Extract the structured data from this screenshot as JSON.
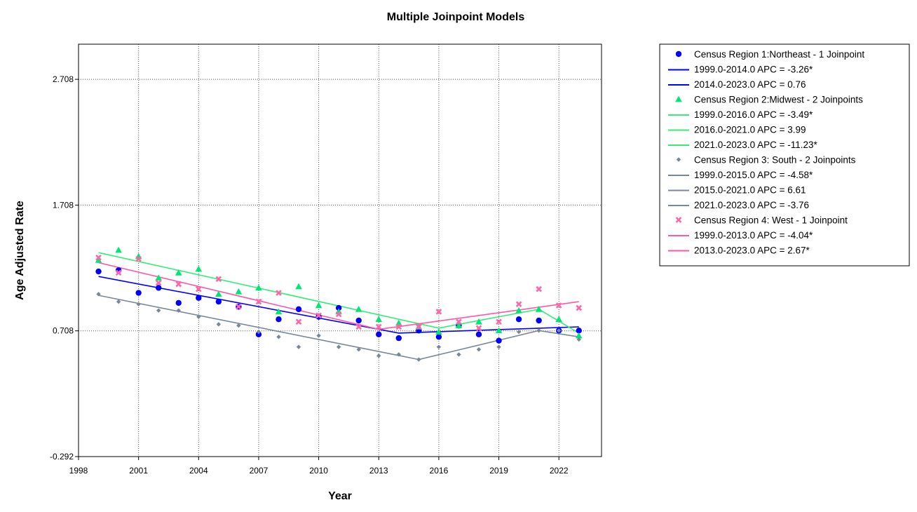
{
  "chart_data": {
    "type": "scatter",
    "title": "Multiple Joinpoint Models",
    "xlabel": "Year",
    "ylabel": "Age Adjusted Rate",
    "xlim": [
      1998,
      2024
    ],
    "ylim": [
      -0.292,
      2.708
    ],
    "x_ticks": [
      1998,
      2001,
      2004,
      2007,
      2010,
      2013,
      2016,
      2019,
      2022
    ],
    "y_ticks": [
      -0.292,
      0.708,
      1.708,
      2.708
    ],
    "y_tick_labels": [
      "-0.292",
      "0.708",
      "1.708",
      "2.708"
    ],
    "grid": "dotted",
    "legend_position": "right",
    "series": [
      {
        "name": "Census Region 1:Northeast - 1 Joinpoint",
        "marker": "circle",
        "color": "#0000ff",
        "x": [
          1999,
          2000,
          2001,
          2002,
          2003,
          2004,
          2005,
          2006,
          2007,
          2008,
          2009,
          2010,
          2011,
          2012,
          2013,
          2014,
          2015,
          2016,
          2017,
          2018,
          2019,
          2020,
          2021,
          2022,
          2023
        ],
        "y": [
          1.18,
          1.19,
          1.01,
          1.05,
          0.93,
          0.97,
          0.94,
          0.9,
          0.68,
          0.8,
          0.88,
          0.82,
          0.89,
          0.79,
          0.68,
          0.65,
          0.71,
          0.66,
          0.75,
          0.68,
          0.63,
          0.8,
          0.79,
          0.71,
          0.71
        ],
        "fit": {
          "x": [
            1999,
            2014,
            2023
          ],
          "y": [
            1.14,
            0.69,
            0.74
          ]
        },
        "segments": [
          {
            "label": "1999.0-2014.0 APC  =  -3.26*"
          },
          {
            "label": "2014.0-2023.0 APC  =  0.76"
          }
        ]
      },
      {
        "name": "Census Region 2:Midwest - 2 Joinpoints",
        "marker": "triangle",
        "color": "#00e673",
        "line_color": "#33ee77",
        "x": [
          1999,
          2000,
          2001,
          2002,
          2003,
          2004,
          2005,
          2006,
          2007,
          2008,
          2009,
          2010,
          2011,
          2012,
          2013,
          2014,
          2015,
          2016,
          2017,
          2018,
          2019,
          2020,
          2021,
          2022,
          2023
        ],
        "y": [
          1.27,
          1.35,
          1.3,
          1.13,
          1.17,
          1.2,
          1.0,
          1.02,
          1.05,
          0.86,
          1.06,
          0.91,
          0.86,
          0.88,
          0.8,
          0.77,
          0.74,
          0.7,
          0.75,
          0.78,
          0.71,
          0.87,
          0.88,
          0.8,
          0.67
        ],
        "fit": {
          "x": [
            1999,
            2016,
            2021,
            2023
          ],
          "y": [
            1.33,
            0.73,
            0.88,
            0.69
          ]
        },
        "segments": [
          {
            "label": "1999.0-2016.0 APC  =  -3.49*"
          },
          {
            "label": "2016.0-2021.0 APC  =   3.99"
          },
          {
            "label": "2021.0-2023.0 APC  =  -11.23*"
          }
        ]
      },
      {
        "name": "Census Region 3: South - 2 Joinpoints",
        "marker": "diamond",
        "color": "#778899",
        "x": [
          1999,
          2000,
          2001,
          2002,
          2003,
          2004,
          2005,
          2006,
          2007,
          2008,
          2009,
          2010,
          2011,
          2012,
          2013,
          2014,
          2015,
          2016,
          2017,
          2018,
          2019,
          2020,
          2021,
          2022,
          2023
        ],
        "y": [
          1.0,
          0.94,
          0.92,
          0.87,
          0.87,
          0.82,
          0.76,
          0.75,
          0.7,
          0.66,
          0.58,
          0.67,
          0.58,
          0.56,
          0.51,
          0.52,
          0.48,
          0.58,
          0.52,
          0.56,
          0.58,
          0.7,
          0.71,
          0.71,
          0.64
        ],
        "fit": {
          "x": [
            1999,
            2015,
            2021,
            2023
          ],
          "y": [
            0.99,
            0.48,
            0.71,
            0.66
          ]
        },
        "segments": [
          {
            "label": "1999.0-2015.0 APC  =  -4.58*"
          },
          {
            "label": "2015.0-2021.0 APC  =  6.61"
          },
          {
            "label": "2021.0-2023.0 APC  =  -3.76"
          }
        ]
      },
      {
        "name": "Census Region 4: West - 1 Joinpoint",
        "marker": "x",
        "color": "#ff66aa",
        "line_color": "#ff55aa",
        "x": [
          1999,
          2000,
          2001,
          2002,
          2003,
          2004,
          2005,
          2006,
          2007,
          2008,
          2009,
          2010,
          2011,
          2012,
          2013,
          2014,
          2015,
          2016,
          2017,
          2018,
          2019,
          2020,
          2021,
          2022,
          2023
        ],
        "y": [
          1.29,
          1.17,
          1.28,
          1.09,
          1.08,
          1.04,
          1.12,
          0.9,
          0.94,
          1.01,
          0.78,
          0.83,
          0.84,
          0.74,
          0.74,
          0.74,
          0.74,
          0.86,
          0.78,
          0.73,
          0.78,
          0.92,
          1.04,
          0.91,
          0.89
        ],
        "fit": {
          "x": [
            1999,
            2013,
            2023
          ],
          "y": [
            1.25,
            0.72,
            0.94
          ]
        },
        "segments": [
          {
            "label": "1999.0-2013.0 APC  =  -4.04*"
          },
          {
            "label": "2013.0-2023.0 APC  =  2.67*"
          }
        ]
      }
    ]
  }
}
